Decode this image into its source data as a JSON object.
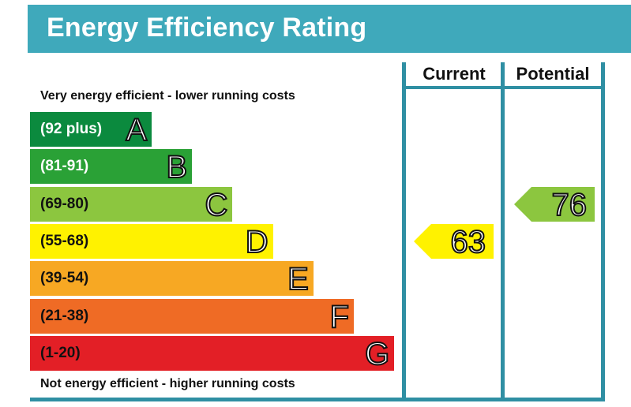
{
  "title": "Energy Efficiency Rating",
  "columns": {
    "current": "Current",
    "potential": "Potential"
  },
  "top_caption": "Very energy efficient - lower running costs",
  "bottom_caption": "Not energy efficient - higher running costs",
  "colors": {
    "header": "#3fa9bb",
    "frame": "#2f8fa3",
    "A": "#0b8a3e",
    "B": "#2aa136",
    "C": "#8cc63f",
    "D": "#fff200",
    "E": "#f7a823",
    "F": "#ef6b25",
    "G": "#e31f26"
  },
  "chart_data": {
    "type": "bar",
    "categories": [
      "A",
      "B",
      "C",
      "D",
      "E",
      "F",
      "G"
    ],
    "bands": [
      {
        "letter": "A",
        "range": "(92 plus)",
        "min": 92,
        "max": 100
      },
      {
        "letter": "B",
        "range": "(81-91)",
        "min": 81,
        "max": 91
      },
      {
        "letter": "C",
        "range": "(69-80)",
        "min": 69,
        "max": 80
      },
      {
        "letter": "D",
        "range": "(55-68)",
        "min": 55,
        "max": 68
      },
      {
        "letter": "E",
        "range": "(39-54)",
        "min": 39,
        "max": 54
      },
      {
        "letter": "F",
        "range": "(21-38)",
        "min": 21,
        "max": 38
      },
      {
        "letter": "G",
        "range": "(1-20)",
        "min": 1,
        "max": 20
      }
    ],
    "current": {
      "value": 63,
      "band": "D"
    },
    "potential": {
      "value": 76,
      "band": "C"
    }
  }
}
